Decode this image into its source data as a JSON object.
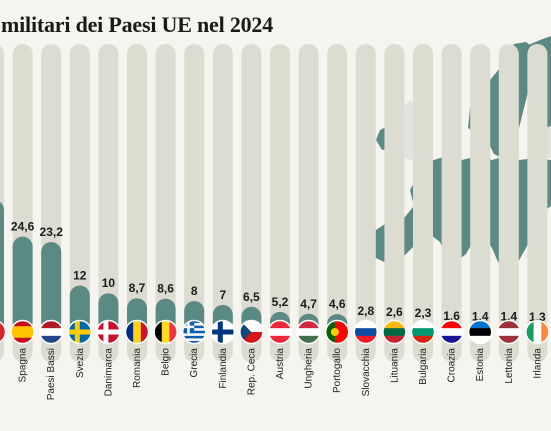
{
  "title": "militari dei Paesi UE nel 2024",
  "colors": {
    "bar": "#5b8a84",
    "column": "#dcdcd0",
    "background": "#f6f4ef",
    "map_eu": "#5b8a84",
    "map_other": "#dfe4e1",
    "sea": "#ffffff"
  },
  "chart_data": {
    "type": "bar",
    "title": "militari dei Paesi UE nel 2024",
    "categories": [
      "",
      "Spagna",
      "Paesi Bassi",
      "Svezia",
      "Danimarca",
      "Romania",
      "Belgio",
      "Grecia",
      "Finlandia",
      "Rep. Ceca",
      "Austria",
      "Ungheria",
      "Portogallo",
      "Slovacchia",
      "Lituania",
      "Bulgaria",
      "Croazia",
      "Estonia",
      "Lettonia",
      "Irlanda"
    ],
    "value_labels": [
      "",
      "24,6",
      "23,2",
      "12",
      "10",
      "8,7",
      "8,6",
      "8",
      "7",
      "6,5",
      "5,2",
      "4,7",
      "4,6",
      "2,8",
      "2,6",
      "2,3",
      "1,6",
      "1,4",
      "1,4",
      "1,3"
    ],
    "values": [
      null,
      24.6,
      23.2,
      12,
      10,
      8.7,
      8.6,
      8,
      7,
      6.5,
      5.2,
      4.7,
      4.6,
      2.8,
      2.6,
      2.3,
      1.6,
      1.4,
      1.4,
      1.3
    ],
    "flags": [
      "",
      "spain-flag",
      "netherlands-flag",
      "sweden-flag",
      "denmark-flag",
      "romania-flag",
      "belgium-flag",
      "greece-flag",
      "finland-flag",
      "czechia-flag",
      "austria-flag",
      "hungary-flag",
      "portugal-flag",
      "slovakia-flag",
      "lithuania-flag",
      "bulgaria-flag",
      "croatia-flag",
      "estonia-flag",
      "latvia-flag",
      "ireland-flag"
    ],
    "ylim": [
      0,
      48
    ],
    "xlabel": "",
    "ylabel": "",
    "grid": false
  }
}
